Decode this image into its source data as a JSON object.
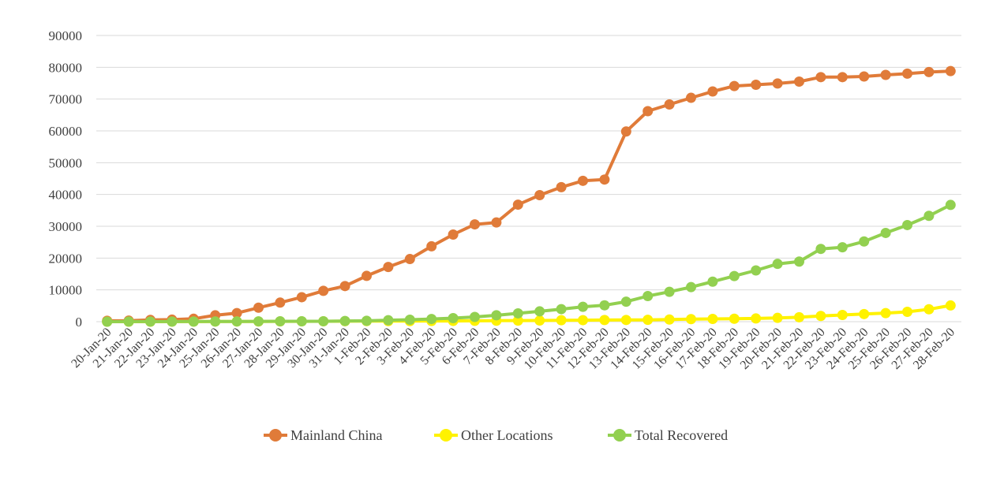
{
  "chart_data": {
    "type": "line",
    "title": "",
    "xlabel": "",
    "ylabel": "",
    "ylim": [
      0,
      90000
    ],
    "yticks": [
      0,
      10000,
      20000,
      30000,
      40000,
      50000,
      60000,
      70000,
      80000,
      90000
    ],
    "grid": true,
    "legend": "bottom",
    "categories": [
      "20-Jan-20",
      "21-Jan-20",
      "22-Jan-20",
      "23-Jan-20",
      "24-Jan-20",
      "25-Jan-20",
      "26-Jan-20",
      "27-Jan-20",
      "28-Jan-20",
      "29-Jan-20",
      "30-Jan-20",
      "31-Jan-20",
      "1-Feb-20",
      "2-Feb-20",
      "3-Feb-20",
      "4-Feb-20",
      "5-Feb-20",
      "6-Feb-20",
      "7-Feb-20",
      "8-Feb-20",
      "9-Feb-20",
      "10-Feb-20",
      "11-Feb-20",
      "12-Feb-20",
      "13-Feb-20",
      "14-Feb-20",
      "15-Feb-20",
      "16-Feb-20",
      "17-Feb-20",
      "18-Feb-20",
      "19-Feb-20",
      "20-Feb-20",
      "21-Feb-20",
      "22-Feb-20",
      "23-Feb-20",
      "24-Feb-20",
      "25-Feb-20",
      "26-Feb-20",
      "27-Feb-20",
      "28-Feb-20"
    ],
    "series": [
      {
        "name": "Mainland China",
        "color": "#E07B39",
        "values": [
          278,
          326,
          547,
          639,
          916,
          2000,
          2700,
          4400,
          6000,
          7700,
          9700,
          11200,
          14400,
          17200,
          19700,
          23700,
          27400,
          30600,
          31200,
          36800,
          39800,
          42300,
          44300,
          44700,
          59800,
          66200,
          68300,
          70400,
          72400,
          74100,
          74500,
          74900,
          75500,
          76900,
          76900,
          77100,
          77600,
          78000,
          78500,
          78800
        ]
      },
      {
        "name": "Other Locations",
        "color": "#FFF200",
        "values": [
          4,
          6,
          8,
          14,
          25,
          40,
          57,
          64,
          87,
          105,
          118,
          153,
          173,
          183,
          188,
          212,
          227,
          265,
          317,
          343,
          361,
          457,
          476,
          523,
          538,
          581,
          681,
          803,
          869,
          937,
          1012,
          1200,
          1400,
          1800,
          2100,
          2400,
          2700,
          3100,
          3900,
          5100
        ]
      },
      {
        "name": "Total Recovered",
        "color": "#92D050",
        "values": [
          0,
          28,
          30,
          34,
          39,
          52,
          76,
          107,
          117,
          124,
          135,
          222,
          284,
          472,
          623,
          852,
          1124,
          1487,
          2011,
          2616,
          3244,
          3946,
          4683,
          5150,
          6295,
          8058,
          9395,
          10865,
          12583,
          14352,
          16121,
          18177,
          18890,
          22886,
          23394,
          25227,
          27905,
          30384,
          33277,
          36711
        ]
      }
    ]
  }
}
